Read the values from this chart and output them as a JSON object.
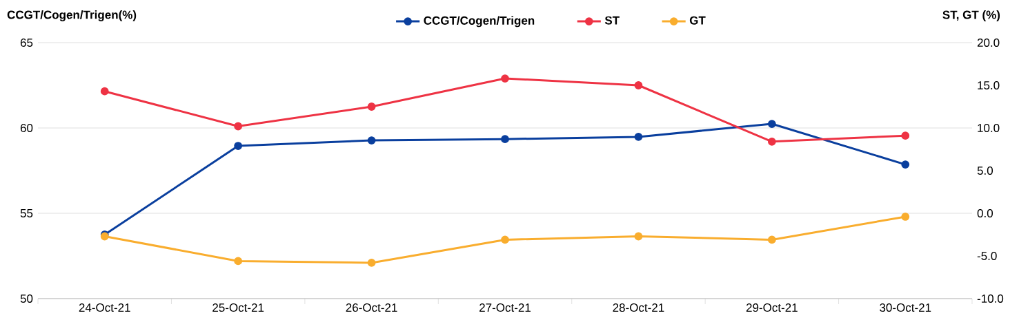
{
  "chart_data": {
    "type": "line",
    "categories": [
      "24-Oct-21",
      "25-Oct-21",
      "26-Oct-21",
      "27-Oct-21",
      "28-Oct-21",
      "29-Oct-21",
      "30-Oct-21"
    ],
    "ylabel": "CCGT/Cogen/Trigen(%)",
    "y2label": "ST, GT (%)",
    "ylim": [
      50,
      65
    ],
    "yticks": [
      50,
      55,
      60,
      65
    ],
    "y2lim": [
      -10,
      20
    ],
    "y2ticks": [
      {
        "value": -10,
        "label": "-10.0"
      },
      {
        "value": -5,
        "label": "-5.0"
      },
      {
        "value": 0,
        "label": "0.0"
      },
      {
        "value": 5,
        "label": "5.0"
      },
      {
        "value": 10,
        "label": "10.0"
      },
      {
        "value": 15,
        "label": "15.0"
      },
      {
        "value": 20,
        "label": "20.0"
      }
    ],
    "series": [
      {
        "name": "CCGT/Cogen/Trigen",
        "color": "#0a3f9e",
        "values": [
          53.75,
          58.95,
          59.27,
          59.35,
          59.48,
          60.24,
          57.86
        ]
      },
      {
        "name": "ST",
        "color": "#ee3344",
        "axis": "y2",
        "values": [
          14.3,
          10.2,
          12.5,
          15.8,
          15.0,
          8.4,
          9.1
        ]
      },
      {
        "name": "GT",
        "color": "#f9ad2e",
        "axis": "y2",
        "values": [
          -2.7,
          -5.6,
          -5.8,
          -3.1,
          -2.7,
          -3.1,
          -0.4
        ]
      }
    ],
    "grid": "y",
    "legend": "top",
    "marker": "circle",
    "line_style": "solid"
  }
}
